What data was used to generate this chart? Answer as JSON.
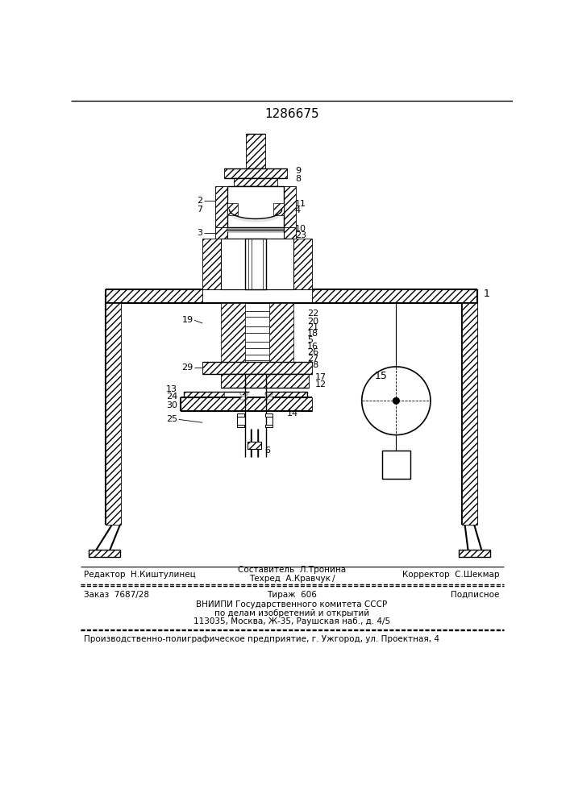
{
  "patent_number": "1286675",
  "bg": "#ffffff",
  "lc": "#000000",
  "footer": {
    "editor": "Редактор  Н.Киштулинец",
    "compiler_line1": "Составитель  Л.Тронина",
    "compiler_line2": "Техред  А.Кравчук /",
    "corrector": "Корректор  С.Шекмар",
    "order": "Заказ  7687/28",
    "copies": "Тираж  606",
    "subscription": "Подписное",
    "vniipи1": "ВНИИПИ Государственного комитета СССР",
    "vniipи2": "по делам изобретений и открытий",
    "vniipи3": "113035, Москва, Ж-35, Раушская наб., д. 4/5",
    "producer": "Производственно-полиграфическое предприятие, г. Ужгород, ул. Проектная, 4"
  }
}
